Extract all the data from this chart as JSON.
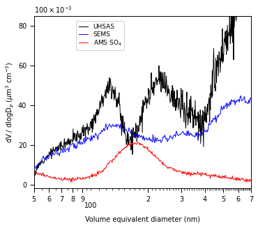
{
  "xlabel": "Volume equivalent diameter (nm)",
  "ylabel": "dV / dlogD$_p$ (μm$^3$ cm$^{-3}$)",
  "ymin": -2,
  "ymax": 85,
  "xmin": 50,
  "xmax": 700,
  "yticks": [
    0,
    20,
    40,
    60,
    80
  ],
  "ytick_labels": [
    "0",
    "20",
    "40",
    "60",
    "80"
  ],
  "legend": [
    "UHSAS",
    "SEMS",
    "AMS SO$_4$"
  ],
  "colors": [
    "black",
    "blue",
    "red"
  ],
  "background": "#ffffff",
  "top_label": "100×10$^{-3}$"
}
